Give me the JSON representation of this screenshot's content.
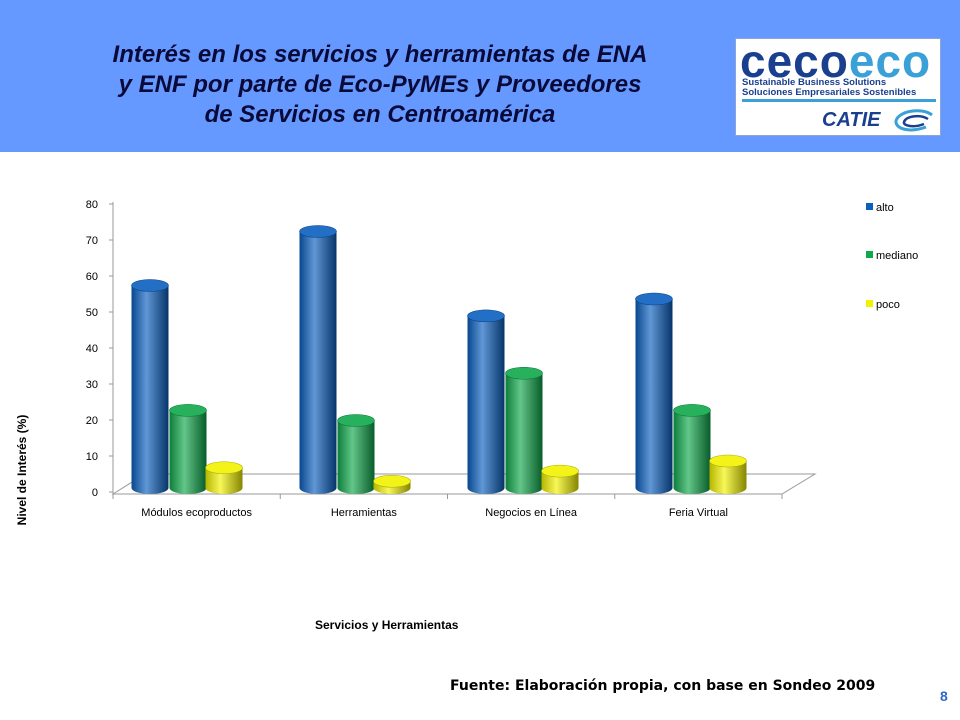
{
  "slide": {
    "title_lines": [
      "Interés en los servicios y herramientas de ENA",
      "y ENF por parte de Eco-PyMEs y Proveedores",
      "de Servicios en Centroamérica"
    ],
    "source": "Fuente: Elaboración propia, con base en Sondeo 2009",
    "page_number": "8",
    "header_color": "#6699ff"
  },
  "logo": {
    "word_part1": "ceco",
    "word_part2": "eco",
    "subtitle_en": "Sustainable Business Solutions",
    "subtitle_es": "Soluciones Empresariales Sostenibles",
    "partner": "CATIE"
  },
  "chart_data": {
    "type": "bar",
    "categories": [
      "Módulos ecoproductos",
      "Herramientas",
      "Negocios en Línea",
      "Feria Virtual"
    ],
    "series": [
      {
        "name": "alto",
        "color": "#0b5fbf",
        "values": [
          60,
          76,
          51,
          56
        ]
      },
      {
        "name": "mediano",
        "color": "#0fa84a",
        "values": [
          23,
          20,
          34,
          23
        ]
      },
      {
        "name": "poco",
        "color": "#f2f200",
        "values": [
          6,
          2,
          5,
          8
        ]
      }
    ],
    "ylim": [
      0,
      80
    ],
    "yticks": [
      "0",
      "10",
      "20",
      "30",
      "40",
      "50",
      "60",
      "70",
      "80"
    ],
    "xlabel": "Servicios y Herramientas",
    "ylabel": "Nivel de Interés  (%)",
    "legend_position": "right",
    "style": "3d-cylinder"
  }
}
